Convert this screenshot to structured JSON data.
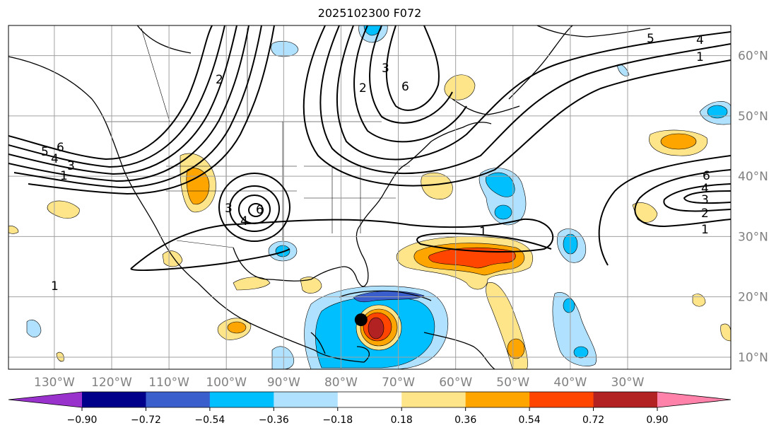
{
  "title": "2025102300 F072",
  "map": {
    "lon_range": [
      -138,
      -12
    ],
    "lat_range": [
      8,
      65
    ],
    "lon_ticks": [
      {
        "value": -130,
        "label": "130°W"
      },
      {
        "value": -120,
        "label": "120°W"
      },
      {
        "value": -110,
        "label": "110°W"
      },
      {
        "value": -100,
        "label": "100°W"
      },
      {
        "value": -90,
        "label": "90°W"
      },
      {
        "value": -80,
        "label": "80°W"
      },
      {
        "value": -70,
        "label": "70°W"
      },
      {
        "value": -60,
        "label": "60°W"
      },
      {
        "value": -50,
        "label": "50°W"
      },
      {
        "value": -40,
        "label": "40°W"
      },
      {
        "value": -30,
        "label": "30°W"
      }
    ],
    "lat_ticks": [
      {
        "value": 60,
        "label": "60°N"
      },
      {
        "value": 50,
        "label": "50°N"
      },
      {
        "value": 40,
        "label": "40°N"
      },
      {
        "value": 30,
        "label": "30°N"
      },
      {
        "value": 20,
        "label": "20°N"
      },
      {
        "value": 10,
        "label": "10°N"
      }
    ],
    "grid": true,
    "storm_marker": {
      "lon": -76.5,
      "lat": 16.2
    }
  },
  "colorbar": {
    "colors": [
      "#9932cc",
      "#00008b",
      "#3a5fcd",
      "#00bfff",
      "#b0e2ff",
      "#ffffff",
      "#ffe58a",
      "#ffa500",
      "#ff4500",
      "#b22222",
      "#ff82ab"
    ],
    "tick_labels": [
      "−0.90",
      "−0.72",
      "−0.54",
      "−0.36",
      "−0.18",
      "0.18",
      "0.36",
      "0.54",
      "0.72",
      "0.90"
    ]
  },
  "contour_labels": [
    "1",
    "2",
    "3",
    "4",
    "5",
    "6"
  ]
}
